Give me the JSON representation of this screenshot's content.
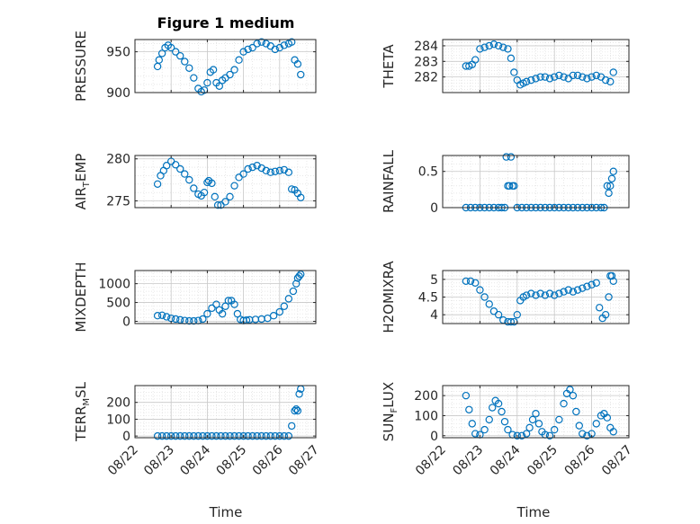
{
  "figure": {
    "title": "Figure 1 medium",
    "time_label": "Time",
    "date_ticks": [
      "08/22",
      "08/23",
      "08/24",
      "08/25",
      "08/26",
      "08/27"
    ],
    "marker_color": "#0072bd"
  },
  "chart_data": [
    {
      "type": "scatter",
      "ylabel": "PRESSURE",
      "xlabel": "",
      "xlim": [
        "08/22",
        "08/27"
      ],
      "ylim": [
        900,
        965
      ],
      "yticks": [
        900,
        950
      ],
      "grid": true,
      "x": [
        "08/22 15:00",
        "08/22 16:00",
        "08/22 18:00",
        "08/22 20:00",
        "08/22 22:00",
        "08/23 00:00",
        "08/23 03:00",
        "08/23 06:00",
        "08/23 09:00",
        "08/23 12:00",
        "08/23 15:00",
        "08/23 18:00",
        "08/23 20:00",
        "08/23 22:00",
        "08/24 00:00",
        "08/24 02:00",
        "08/24 04:00",
        "08/24 06:00",
        "08/24 08:00",
        "08/24 10:00",
        "08/24 12:00",
        "08/24 15:00",
        "08/24 18:00",
        "08/24 21:00",
        "08/25 00:00",
        "08/25 03:00",
        "08/25 06:00",
        "08/25 09:00",
        "08/25 12:00",
        "08/25 15:00",
        "08/25 18:00",
        "08/25 21:00",
        "08/26 00:00",
        "08/26 03:00",
        "08/26 06:00",
        "08/26 08:00",
        "08/26 10:00",
        "08/26 12:00",
        "08/26 14:00"
      ],
      "y": [
        932,
        940,
        948,
        955,
        958,
        955,
        950,
        945,
        938,
        930,
        918,
        905,
        901,
        903,
        912,
        925,
        928,
        912,
        908,
        915,
        918,
        922,
        928,
        940,
        950,
        953,
        955,
        960,
        962,
        960,
        957,
        953,
        955,
        958,
        960,
        962,
        940,
        935,
        922
      ]
    },
    {
      "type": "scatter",
      "ylabel": "THETA",
      "xlabel": "",
      "xlim": [
        "08/22",
        "08/27"
      ],
      "ylim": [
        281.0,
        284.4
      ],
      "yticks": [
        282,
        283,
        284
      ],
      "grid": true,
      "x": [
        "08/22 15:00",
        "08/22 17:00",
        "08/22 19:00",
        "08/22 21:00",
        "08/23 00:00",
        "08/23 03:00",
        "08/23 06:00",
        "08/23 09:00",
        "08/23 12:00",
        "08/23 15:00",
        "08/23 18:00",
        "08/23 20:00",
        "08/23 22:00",
        "08/24 00:00",
        "08/24 02:00",
        "08/24 04:00",
        "08/24 06:00",
        "08/24 09:00",
        "08/24 12:00",
        "08/24 15:00",
        "08/24 18:00",
        "08/24 21:00",
        "08/25 00:00",
        "08/25 03:00",
        "08/25 06:00",
        "08/25 09:00",
        "08/25 12:00",
        "08/25 15:00",
        "08/25 18:00",
        "08/25 21:00",
        "08/26 00:00",
        "08/26 03:00",
        "08/26 06:00",
        "08/26 09:00",
        "08/26 12:00",
        "08/26 14:00"
      ],
      "y": [
        282.7,
        282.7,
        282.8,
        283.1,
        283.8,
        283.9,
        284.0,
        284.1,
        284.0,
        283.9,
        283.8,
        283.2,
        282.3,
        281.8,
        281.5,
        281.6,
        281.7,
        281.8,
        281.9,
        282.0,
        282.0,
        281.9,
        282.0,
        282.1,
        282.0,
        281.9,
        282.1,
        282.1,
        282.0,
        281.9,
        282.0,
        282.1,
        282.0,
        281.8,
        281.7,
        282.3
      ]
    },
    {
      "type": "scatter",
      "ylabel": "AIR_TEMP",
      "xlabel": "",
      "xlim": [
        "08/22",
        "08/27"
      ],
      "ylim": [
        274.2,
        280.4
      ],
      "yticks": [
        275,
        280
      ],
      "grid": true,
      "x": [
        "08/22 15:00",
        "08/22 17:00",
        "08/22 19:00",
        "08/22 21:00",
        "08/23 00:00",
        "08/23 03:00",
        "08/23 06:00",
        "08/23 09:00",
        "08/23 12:00",
        "08/23 15:00",
        "08/23 18:00",
        "08/23 20:00",
        "08/23 22:00",
        "08/24 00:00",
        "08/24 01:00",
        "08/24 03:00",
        "08/24 05:00",
        "08/24 07:00",
        "08/24 09:00",
        "08/24 12:00",
        "08/24 15:00",
        "08/24 18:00",
        "08/24 21:00",
        "08/25 00:00",
        "08/25 03:00",
        "08/25 06:00",
        "08/25 09:00",
        "08/25 12:00",
        "08/25 15:00",
        "08/25 18:00",
        "08/25 21:00",
        "08/26 00:00",
        "08/26 03:00",
        "08/26 06:00",
        "08/26 08:00",
        "08/26 10:00",
        "08/26 12:00",
        "08/26 14:00"
      ],
      "y": [
        277.0,
        278.0,
        278.6,
        279.2,
        279.7,
        279.3,
        278.8,
        278.2,
        277.5,
        276.5,
        275.8,
        275.6,
        276.0,
        277.2,
        277.4,
        277.1,
        275.5,
        274.5,
        274.5,
        274.9,
        275.5,
        276.8,
        277.8,
        278.2,
        278.8,
        279.0,
        279.2,
        278.9,
        278.6,
        278.4,
        278.5,
        278.6,
        278.7,
        278.4,
        276.4,
        276.3,
        275.9,
        275.4
      ]
    },
    {
      "type": "scatter",
      "ylabel": "RAINFALL",
      "xlabel": "",
      "xlim": [
        "08/22",
        "08/27"
      ],
      "ylim": [
        0,
        0.72
      ],
      "yticks": [
        0,
        0.5
      ],
      "grid": true,
      "x": [
        "08/22 15:00",
        "08/22 18:00",
        "08/22 21:00",
        "08/23 00:00",
        "08/23 03:00",
        "08/23 06:00",
        "08/23 09:00",
        "08/23 12:00",
        "08/23 14:00",
        "08/23 16:00",
        "08/23 17:00",
        "08/23 18:00",
        "08/23 19:00",
        "08/23 20:00",
        "08/23 21:00",
        "08/23 22:00",
        "08/24 00:00",
        "08/24 03:00",
        "08/24 06:00",
        "08/24 09:00",
        "08/24 12:00",
        "08/24 15:00",
        "08/24 18:00",
        "08/24 21:00",
        "08/25 00:00",
        "08/25 03:00",
        "08/25 06:00",
        "08/25 09:00",
        "08/25 12:00",
        "08/25 15:00",
        "08/25 18:00",
        "08/25 21:00",
        "08/26 00:00",
        "08/26 03:00",
        "08/26 06:00",
        "08/26 08:00",
        "08/26 10:00",
        "08/26 11:00",
        "08/26 12:00",
        "08/26 13:00",
        "08/26 14:00"
      ],
      "y": [
        0,
        0,
        0,
        0,
        0,
        0,
        0,
        0,
        0,
        0,
        0.7,
        0.3,
        0.3,
        0.7,
        0.3,
        0.3,
        0,
        0,
        0,
        0,
        0,
        0,
        0,
        0,
        0,
        0,
        0,
        0,
        0,
        0,
        0,
        0,
        0,
        0,
        0,
        0,
        0.3,
        0.2,
        0.3,
        0.4,
        0.5
      ]
    },
    {
      "type": "scatter",
      "ylabel": "MIXDEPTH",
      "xlabel": "",
      "xlim": [
        "08/22",
        "08/27"
      ],
      "ylim": [
        -60,
        1350
      ],
      "yticks": [
        0,
        500,
        1000
      ],
      "grid": true,
      "x": [
        "08/22 15:00",
        "08/22 18:00",
        "08/22 21:00",
        "08/23 00:00",
        "08/23 03:00",
        "08/23 06:00",
        "08/23 09:00",
        "08/23 12:00",
        "08/23 15:00",
        "08/23 18:00",
        "08/23 21:00",
        "08/24 00:00",
        "08/24 03:00",
        "08/24 06:00",
        "08/24 08:00",
        "08/24 10:00",
        "08/24 12:00",
        "08/24 14:00",
        "08/24 16:00",
        "08/24 18:00",
        "08/24 20:00",
        "08/24 22:00",
        "08/25 00:00",
        "08/25 02:00",
        "08/25 04:00",
        "08/25 08:00",
        "08/25 12:00",
        "08/25 16:00",
        "08/25 20:00",
        "08/26 00:00",
        "08/26 03:00",
        "08/26 06:00",
        "08/26 09:00",
        "08/26 11:00",
        "08/26 12:00",
        "08/26 13:00",
        "08/26 14:00"
      ],
      "y": [
        150,
        160,
        120,
        80,
        60,
        40,
        20,
        10,
        10,
        20,
        60,
        200,
        350,
        450,
        300,
        200,
        400,
        550,
        550,
        450,
        200,
        50,
        20,
        30,
        40,
        50,
        60,
        80,
        150,
        250,
        400,
        600,
        800,
        1000,
        1150,
        1200,
        1250
      ]
    },
    {
      "type": "scatter",
      "ylabel": "H2OMIXRA",
      "xlabel": "",
      "xlim": [
        "08/22",
        "08/27"
      ],
      "ylim": [
        3.75,
        5.25
      ],
      "yticks": [
        4,
        4.5,
        5
      ],
      "grid": true,
      "x": [
        "08/22 15:00",
        "08/22 18:00",
        "08/22 21:00",
        "08/23 00:00",
        "08/23 03:00",
        "08/23 06:00",
        "08/23 09:00",
        "08/23 12:00",
        "08/23 15:00",
        "08/23 18:00",
        "08/23 20:00",
        "08/23 22:00",
        "08/24 00:00",
        "08/24 02:00",
        "08/24 04:00",
        "08/24 06:00",
        "08/24 09:00",
        "08/24 12:00",
        "08/24 15:00",
        "08/24 18:00",
        "08/24 21:00",
        "08/25 00:00",
        "08/25 03:00",
        "08/25 06:00",
        "08/25 09:00",
        "08/25 12:00",
        "08/25 15:00",
        "08/25 18:00",
        "08/25 21:00",
        "08/26 00:00",
        "08/26 03:00",
        "08/26 05:00",
        "08/26 07:00",
        "08/26 09:00",
        "08/26 11:00",
        "08/26 12:00",
        "08/26 13:00",
        "08/26 14:00"
      ],
      "y": [
        4.95,
        4.95,
        4.9,
        4.7,
        4.5,
        4.3,
        4.1,
        4.0,
        3.85,
        3.8,
        3.8,
        3.8,
        4.0,
        4.4,
        4.5,
        4.55,
        4.6,
        4.55,
        4.6,
        4.55,
        4.6,
        4.55,
        4.6,
        4.65,
        4.7,
        4.65,
        4.7,
        4.75,
        4.8,
        4.85,
        4.9,
        4.2,
        3.9,
        4.0,
        4.5,
        5.1,
        5.1,
        4.95
      ]
    },
    {
      "type": "scatter",
      "ylabel": "TERR_MSL",
      "xlabel": "",
      "xlim": [
        "08/22",
        "08/27"
      ],
      "ylim": [
        -10,
        300
      ],
      "yticks": [
        0,
        100,
        200
      ],
      "grid": true,
      "x": [
        "08/22 15:00",
        "08/22 18:00",
        "08/22 21:00",
        "08/23 00:00",
        "08/23 03:00",
        "08/23 06:00",
        "08/23 09:00",
        "08/23 12:00",
        "08/23 15:00",
        "08/23 18:00",
        "08/23 21:00",
        "08/24 00:00",
        "08/24 03:00",
        "08/24 06:00",
        "08/24 09:00",
        "08/24 12:00",
        "08/24 15:00",
        "08/24 18:00",
        "08/24 21:00",
        "08/25 00:00",
        "08/25 03:00",
        "08/25 06:00",
        "08/25 09:00",
        "08/25 12:00",
        "08/25 15:00",
        "08/25 18:00",
        "08/25 21:00",
        "08/26 00:00",
        "08/26 03:00",
        "08/26 06:00",
        "08/26 08:00",
        "08/26 10:00",
        "08/26 11:00",
        "08/26 12:00",
        "08/26 13:00",
        "08/26 14:00"
      ],
      "y": [
        0,
        0,
        0,
        0,
        0,
        0,
        0,
        0,
        0,
        0,
        0,
        0,
        0,
        0,
        0,
        0,
        0,
        0,
        0,
        0,
        0,
        0,
        0,
        0,
        0,
        0,
        0,
        0,
        0,
        0,
        60,
        150,
        160,
        150,
        250,
        280
      ]
    },
    {
      "type": "scatter",
      "ylabel": "SUN_FLUX",
      "xlabel": "",
      "xlim": [
        "08/22",
        "08/27"
      ],
      "ylim": [
        -10,
        250
      ],
      "yticks": [
        0,
        100,
        200
      ],
      "grid": true,
      "x": [
        "08/22 15:00",
        "08/22 17:00",
        "08/22 19:00",
        "08/22 21:00",
        "08/23 00:00",
        "08/23 03:00",
        "08/23 06:00",
        "08/23 08:00",
        "08/23 10:00",
        "08/23 12:00",
        "08/23 14:00",
        "08/23 16:00",
        "08/23 18:00",
        "08/23 21:00",
        "08/24 00:00",
        "08/24 03:00",
        "08/24 06:00",
        "08/24 08:00",
        "08/24 10:00",
        "08/24 12:00",
        "08/24 14:00",
        "08/24 16:00",
        "08/24 18:00",
        "08/24 21:00",
        "08/25 00:00",
        "08/25 03:00",
        "08/25 06:00",
        "08/25 08:00",
        "08/25 10:00",
        "08/25 12:00",
        "08/25 14:00",
        "08/25 16:00",
        "08/25 18:00",
        "08/25 21:00",
        "08/26 00:00",
        "08/26 03:00",
        "08/26 06:00",
        "08/26 08:00",
        "08/26 10:00",
        "08/26 12:00",
        "08/26 14:00"
      ],
      "y": [
        200,
        130,
        60,
        10,
        5,
        30,
        80,
        140,
        175,
        160,
        120,
        70,
        30,
        5,
        0,
        0,
        10,
        40,
        80,
        110,
        60,
        20,
        5,
        0,
        30,
        80,
        160,
        210,
        230,
        200,
        120,
        50,
        10,
        0,
        10,
        60,
        100,
        110,
        90,
        40,
        20
      ]
    }
  ]
}
